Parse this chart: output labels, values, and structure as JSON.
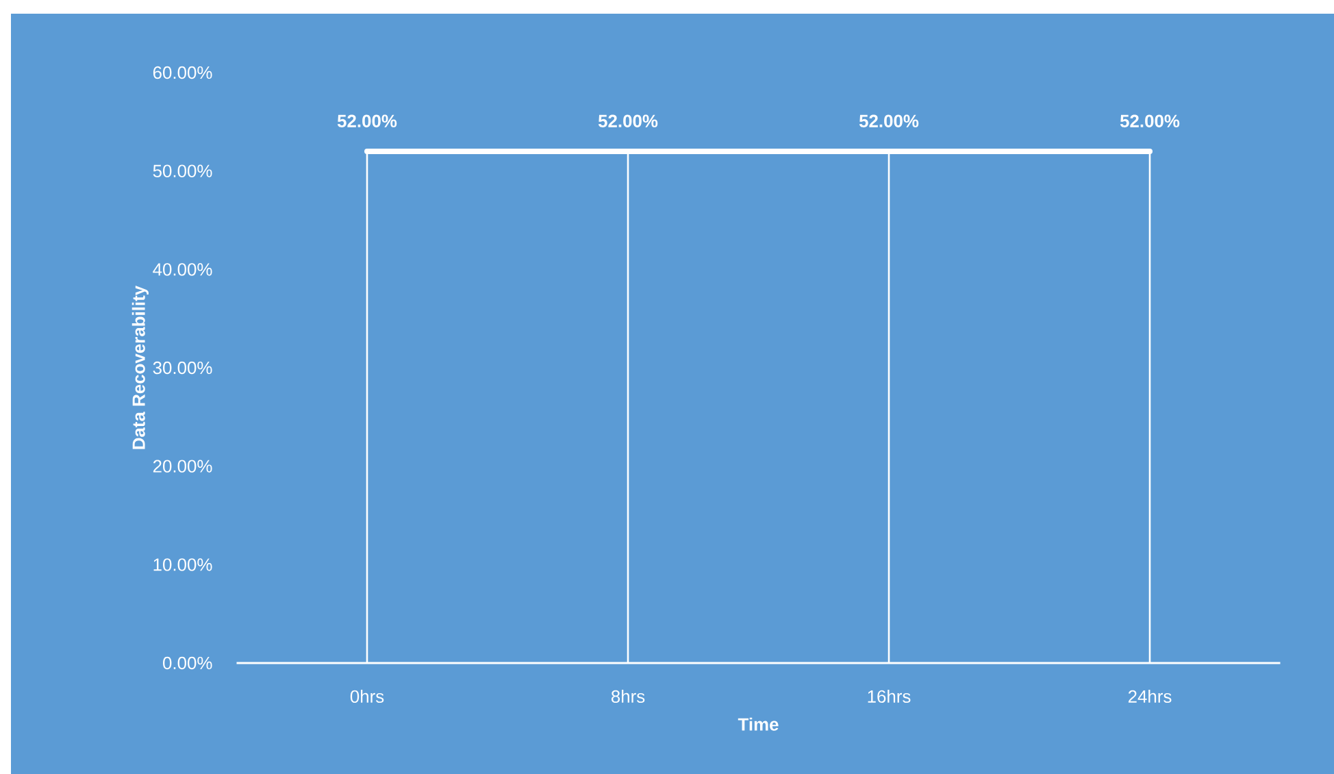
{
  "chart_data": {
    "type": "line",
    "xlabel": "Time",
    "ylabel": "Data Recoverability",
    "categories": [
      "0hrs",
      "8hrs",
      "16hrs",
      "24hrs"
    ],
    "series": [
      {
        "color": "#ffffff",
        "values": [
          52,
          52,
          52,
          52
        ],
        "value_labels": [
          "52.00%",
          "52.00%",
          "52.00%",
          "52.00%"
        ]
      }
    ],
    "ylim": [
      0,
      60
    ],
    "yticks": [
      {
        "value": 0,
        "label": "0.00%"
      },
      {
        "value": 10,
        "label": "10.00%"
      },
      {
        "value": 20,
        "label": "20.00%"
      },
      {
        "value": 30,
        "label": "30.00%"
      },
      {
        "value": 40,
        "label": "40.00%"
      },
      {
        "value": 50,
        "label": "50.00%"
      },
      {
        "value": 60,
        "label": "60.00%"
      }
    ],
    "grid": false,
    "marker": "none",
    "line_style": "solid"
  }
}
